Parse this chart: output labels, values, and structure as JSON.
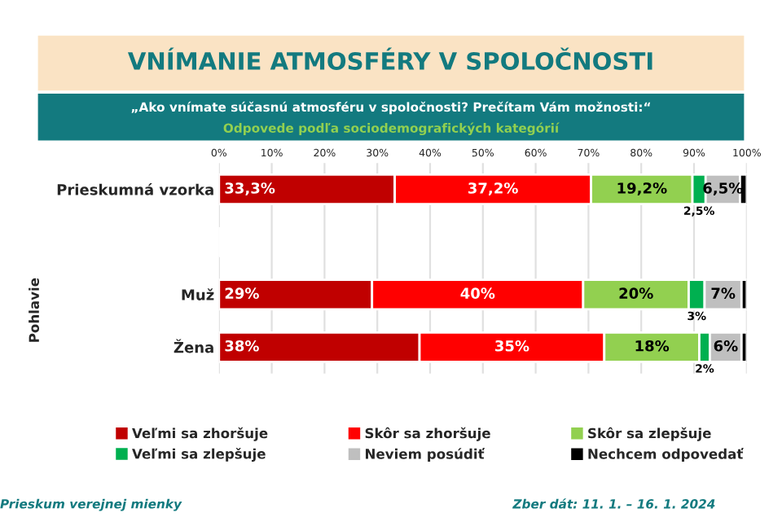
{
  "chart_data": {
    "type": "bar",
    "orientation": "horizontal",
    "stacked": true,
    "title": "VNÍMANIE ATMOSFÉRY V SPOLOČNOSTI",
    "subtitle": "„Ako vnímate súčasnú atmosféru v spoločnosti? Prečítam Vám možnosti:“",
    "annotations": [
      "Odpovede podľa sociodemografických kategórií",
      "Pohlavie",
      "Prieskum verejnej mienky",
      "Zber dát: 11. 1. – 16. 1. 2024"
    ],
    "categories": [
      "Prieskumná vzorka",
      null,
      "Muž",
      "Žena"
    ],
    "series": [
      {
        "name": "Veľmi sa zhoršuje",
        "color": "#c00000",
        "values": [
          33.3,
          null,
          29,
          38
        ],
        "value_labels": [
          "33,3%",
          null,
          "29%",
          "38%"
        ]
      },
      {
        "name": "Skôr sa zhoršuje",
        "color": "#ff0000",
        "values": [
          37.2,
          null,
          40,
          35
        ],
        "value_labels": [
          "37,2%",
          null,
          "40%",
          "35%"
        ]
      },
      {
        "name": "Skôr sa zlepšuje",
        "color": "#92d050",
        "values": [
          19.2,
          null,
          20,
          18
        ],
        "value_labels": [
          "19,2%",
          null,
          "20%",
          "18%"
        ]
      },
      {
        "name": "Veľmi sa zlepšuje",
        "color": "#00b050",
        "values": [
          2.5,
          null,
          3,
          2
        ],
        "value_labels": [
          "2,5%",
          null,
          "3%",
          "2%"
        ]
      },
      {
        "name": "Neviem posúdiť",
        "color": "#bfbfbf",
        "values": [
          6.5,
          null,
          7,
          6
        ],
        "value_labels": [
          "6,5%",
          null,
          "7%",
          "6%"
        ]
      },
      {
        "name": "Nechcem odpovedať",
        "color": "#000000",
        "values": [
          1.3,
          null,
          1,
          1
        ],
        "value_labels": [
          null,
          null,
          null,
          null
        ]
      }
    ],
    "xlim": [
      0,
      100
    ],
    "xticks": [
      {
        "value": 0,
        "label": "0%"
      },
      {
        "value": 10,
        "label": "10%"
      },
      {
        "value": 20,
        "label": "20%"
      },
      {
        "value": 30,
        "label": "30%"
      },
      {
        "value": 40,
        "label": "40%"
      },
      {
        "value": 50,
        "label": "50%"
      },
      {
        "value": 60,
        "label": "60%"
      },
      {
        "value": 70,
        "label": "70%"
      },
      {
        "value": 80,
        "label": "80%"
      },
      {
        "value": 90,
        "label": "90%"
      },
      {
        "value": 100,
        "label": "100%"
      }
    ],
    "grid": "x",
    "legend": "bottom"
  }
}
